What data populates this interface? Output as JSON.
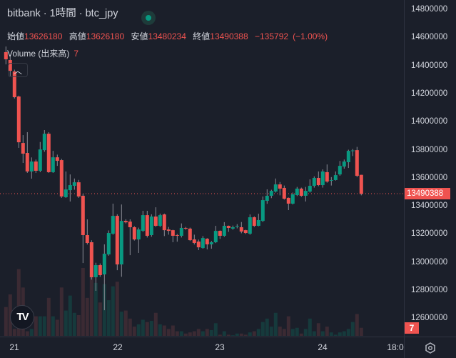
{
  "header": {
    "title": "bitbank · 1時間 · btc_jpy",
    "status": "live"
  },
  "ohlc": {
    "open_label": "始値",
    "open": "13626180",
    "high_label": "高値",
    "high": "13626180",
    "low_label": "安値",
    "low": "13480234",
    "close_label": "終値",
    "close": "13490388",
    "change": "−135792",
    "change_pct": "(−1.00%)"
  },
  "volume": {
    "label": "Volume (出来高)",
    "value": "7"
  },
  "price_axis": {
    "ticks": [
      "14800000",
      "14600000",
      "14400000",
      "14200000",
      "14000000",
      "13800000",
      "13600000",
      "13400000",
      "13200000",
      "13000000",
      "12800000",
      "12600000"
    ],
    "last_price": "13490388",
    "last_volume": "7"
  },
  "time_axis": {
    "labels": [
      "21",
      "22",
      "23",
      "24",
      "18:0"
    ]
  },
  "colors": {
    "up": "#089981",
    "down": "#ef5350",
    "up_vol": "#163a3c",
    "down_vol": "#3b2a33",
    "bg": "#1b1f2a"
  },
  "chart_data": {
    "type": "candlestick",
    "ylim": [
      12600000,
      14800000
    ],
    "ohlc": [
      [
        14500000,
        14540000,
        14413000,
        14449000
      ],
      [
        14444000,
        14480000,
        14330000,
        14367000
      ],
      [
        14362000,
        14375000,
        14170000,
        14179000
      ],
      [
        14184000,
        14190000,
        13818000,
        13858000
      ],
      [
        13853000,
        13909000,
        13711000,
        13777000
      ],
      [
        13782000,
        13930000,
        13640000,
        13650000
      ],
      [
        13650000,
        13750000,
        13599000,
        13721000
      ],
      [
        13721000,
        13735000,
        13640000,
        13655000
      ],
      [
        13655000,
        13860000,
        13645000,
        13807000
      ],
      [
        13802000,
        13945000,
        13790000,
        13919000
      ],
      [
        13919000,
        13930000,
        13640000,
        13645000
      ],
      [
        13645000,
        13797000,
        13640000,
        13751000
      ],
      [
        13751000,
        13770000,
        13690000,
        13726000
      ],
      [
        13731000,
        13740000,
        13462000,
        13472000
      ],
      [
        13467000,
        13650000,
        13462000,
        13522000
      ],
      [
        13517000,
        13629000,
        13436000,
        13553000
      ],
      [
        13548000,
        13600000,
        13520000,
        13573000
      ],
      [
        13573000,
        13590000,
        13462000,
        13472000
      ],
      [
        13477000,
        13490000,
        12998000,
        13197000
      ],
      [
        13197000,
        13309000,
        13130000,
        13141000
      ],
      [
        13146000,
        13160000,
        12880000,
        12897000
      ],
      [
        12897000,
        13000000,
        12800000,
        12983000
      ],
      [
        12983000,
        12995000,
        12900000,
        12912000
      ],
      [
        12917000,
        13131000,
        12662000,
        13064000
      ],
      [
        13059000,
        13230000,
        13050000,
        13212000
      ],
      [
        13207000,
        13421000,
        13200000,
        13334000
      ],
      [
        13334000,
        13345000,
        12947000,
        12988000
      ],
      [
        12988000,
        13415000,
        12900000,
        13298000
      ],
      [
        13298000,
        13310000,
        13280000,
        13288000
      ],
      [
        13293000,
        13309000,
        13054000,
        13253000
      ],
      [
        13253000,
        13260000,
        13158000,
        13166000
      ],
      [
        13166000,
        13250000,
        13070000,
        13237000
      ],
      [
        13227000,
        13370000,
        13220000,
        13339000
      ],
      [
        13339000,
        13370000,
        13180000,
        13192000
      ],
      [
        13197000,
        13345000,
        13185000,
        13329000
      ],
      [
        13329000,
        13395000,
        13255000,
        13263000
      ],
      [
        13263000,
        13350000,
        13255000,
        13339000
      ],
      [
        13344000,
        13350000,
        13190000,
        13232000
      ],
      [
        13237000,
        13255000,
        13200000,
        13227000
      ],
      [
        13232000,
        13235000,
        13146000,
        13192000
      ],
      [
        13197000,
        13205000,
        13150000,
        13192000
      ],
      [
        13192000,
        13280000,
        13180000,
        13248000
      ],
      [
        13248000,
        13255000,
        13235000,
        13243000
      ],
      [
        13243000,
        13250000,
        13155000,
        13161000
      ],
      [
        13166000,
        13200000,
        13130000,
        13141000
      ],
      [
        13151000,
        13165000,
        13090000,
        13110000
      ],
      [
        13105000,
        13190000,
        13100000,
        13176000
      ],
      [
        13171000,
        13175000,
        13095000,
        13131000
      ],
      [
        13131000,
        13155000,
        13100000,
        13146000
      ],
      [
        13146000,
        13263000,
        13140000,
        13227000
      ],
      [
        13227000,
        13230000,
        13170000,
        13192000
      ],
      [
        13192000,
        13289000,
        13185000,
        13263000
      ],
      [
        13263000,
        13265000,
        13220000,
        13248000
      ],
      [
        13243000,
        13265000,
        13235000,
        13253000
      ],
      [
        13258000,
        13275000,
        13245000,
        13262000
      ],
      [
        13253000,
        13290000,
        13210000,
        13222000
      ],
      [
        13232000,
        13235000,
        13205000,
        13212000
      ],
      [
        13207000,
        13344000,
        13200000,
        13324000
      ],
      [
        13324000,
        13330000,
        13255000,
        13263000
      ],
      [
        13263000,
        13349000,
        13260000,
        13304000
      ],
      [
        13298000,
        13472000,
        13290000,
        13446000
      ],
      [
        13441000,
        13523000,
        13420000,
        13477000
      ],
      [
        13477000,
        13520000,
        13460000,
        13512000
      ],
      [
        13507000,
        13600000,
        13500000,
        13558000
      ],
      [
        13558000,
        13575000,
        13480000,
        13528000
      ],
      [
        13533000,
        13550000,
        13450000,
        13456000
      ],
      [
        13462000,
        13465000,
        13375000,
        13421000
      ],
      [
        13421000,
        13500000,
        13415000,
        13487000
      ],
      [
        13482000,
        13540000,
        13475000,
        13528000
      ],
      [
        13528000,
        13535000,
        13470000,
        13477000
      ],
      [
        13477000,
        13540000,
        13436000,
        13512000
      ],
      [
        13507000,
        13594000,
        13500000,
        13548000
      ],
      [
        13548000,
        13615000,
        13535000,
        13604000
      ],
      [
        13604000,
        13650000,
        13545000,
        13553000
      ],
      [
        13553000,
        13665000,
        13535000,
        13650000
      ],
      [
        13645000,
        13700000,
        13570000,
        13578000
      ],
      [
        13585000,
        13610000,
        13550000,
        13589000
      ],
      [
        13589000,
        13650000,
        13585000,
        13624000
      ],
      [
        13629000,
        13725000,
        13620000,
        13690000
      ],
      [
        13685000,
        13735000,
        13670000,
        13721000
      ],
      [
        13716000,
        13805000,
        13675000,
        13797000
      ],
      [
        13797000,
        13810000,
        13760000,
        13800000
      ],
      [
        13802000,
        13825000,
        13610000,
        13619000
      ],
      [
        13626180,
        13626180,
        13480234,
        13490388
      ]
    ],
    "volume": [
      25,
      36,
      6,
      58,
      42,
      4,
      6,
      17,
      17,
      17,
      33,
      17,
      14,
      42,
      22,
      35,
      20,
      18,
      59,
      33,
      52,
      46,
      29,
      45,
      31,
      43,
      47,
      21,
      22,
      15,
      8,
      10,
      14,
      12,
      13,
      20,
      10,
      9,
      6,
      9,
      4,
      4,
      2,
      3,
      4,
      6,
      4,
      6,
      5,
      11,
      1,
      4,
      1,
      0.5,
      2,
      2,
      1,
      3,
      4,
      6,
      12,
      15,
      8,
      20,
      8,
      6,
      17,
      6,
      7,
      2,
      6,
      15,
      4,
      11,
      4,
      8,
      3,
      1,
      3,
      4,
      6,
      12,
      19,
      7
    ],
    "volume_max": 90
  }
}
